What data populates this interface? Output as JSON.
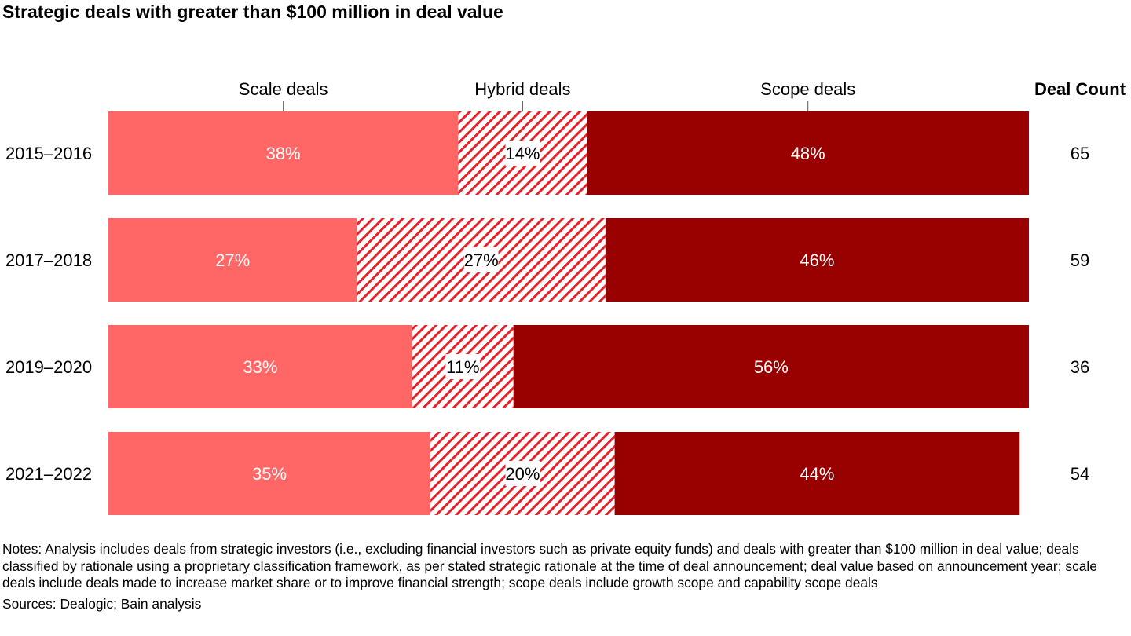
{
  "title": "Strategic deals with greater than $100 million in deal value",
  "notes": "Notes: Analysis includes deals from strategic investors (i.e., excluding financial investors such as private equity funds) and deals with greater than $100 million in deal value; deals classified by rationale using a proprietary classification framework, as per stated strategic rationale at the time of deal announcement; deal value based on announcement year; scale deals include deals made to increase market share or to improve financial strength; scope deals include growth scope and capability scope deals",
  "sources": "Sources: Dealogic; Bain analysis",
  "colors": {
    "scale": "#ff6666",
    "hybrid_stripe": "#e8202a",
    "scope": "#990000",
    "text": "#000000"
  },
  "chart_data": {
    "type": "bar",
    "orientation": "horizontal",
    "stacked": true,
    "normalized_100": true,
    "categories": [
      "2015–2016",
      "2017–2018",
      "2019–2020",
      "2021–2022"
    ],
    "series": [
      {
        "name": "Scale deals",
        "values": [
          38,
          27,
          33,
          35
        ],
        "labels": [
          "38%",
          "27%",
          "33%",
          "35%"
        ],
        "fill": "solid-light"
      },
      {
        "name": "Hybrid deals",
        "values": [
          14,
          27,
          11,
          20
        ],
        "labels": [
          "14%",
          "27%",
          "11%",
          "20%"
        ],
        "fill": "hatched"
      },
      {
        "name": "Scope deals",
        "values": [
          48,
          46,
          56,
          44
        ],
        "labels": [
          "48%",
          "46%",
          "56%",
          "44%"
        ],
        "fill": "solid-dark"
      }
    ],
    "extra_column": {
      "header": "Deal Count",
      "values": [
        65,
        59,
        36,
        54
      ]
    },
    "xlim": [
      0,
      100
    ],
    "grid": false,
    "legend": "top, labels above first bar"
  }
}
